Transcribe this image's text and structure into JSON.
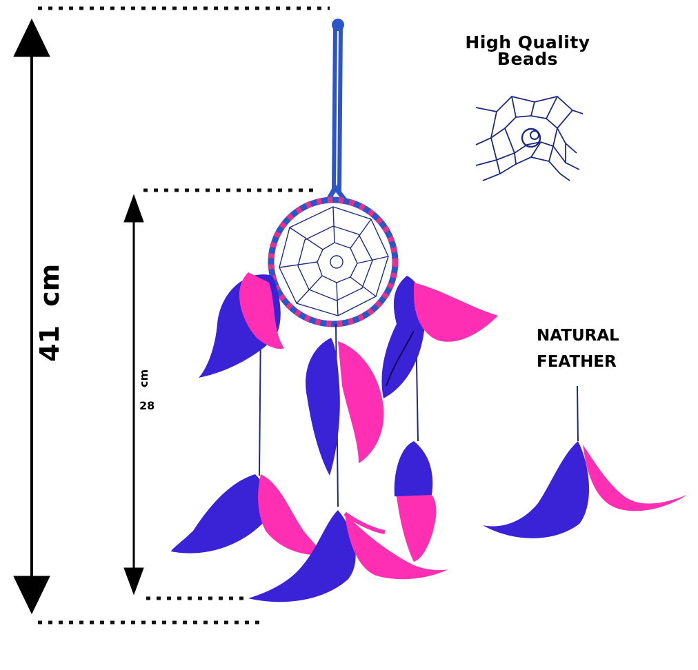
{
  "labels": {
    "beads_line1": "High Quality",
    "beads_line2": "Beads",
    "feather_line1": "NATURAL",
    "feather_line2": "FEATHER",
    "overall_height": "41 cm",
    "hoop_unit": "cm",
    "hoop_value": "28"
  },
  "colors": {
    "feather_blue": "#3a22d6",
    "feather_pink": "#ff2fb4",
    "cord_blue": "#2c56c8",
    "web_navy": "#1b2a80",
    "dotted_line": "#111111"
  }
}
